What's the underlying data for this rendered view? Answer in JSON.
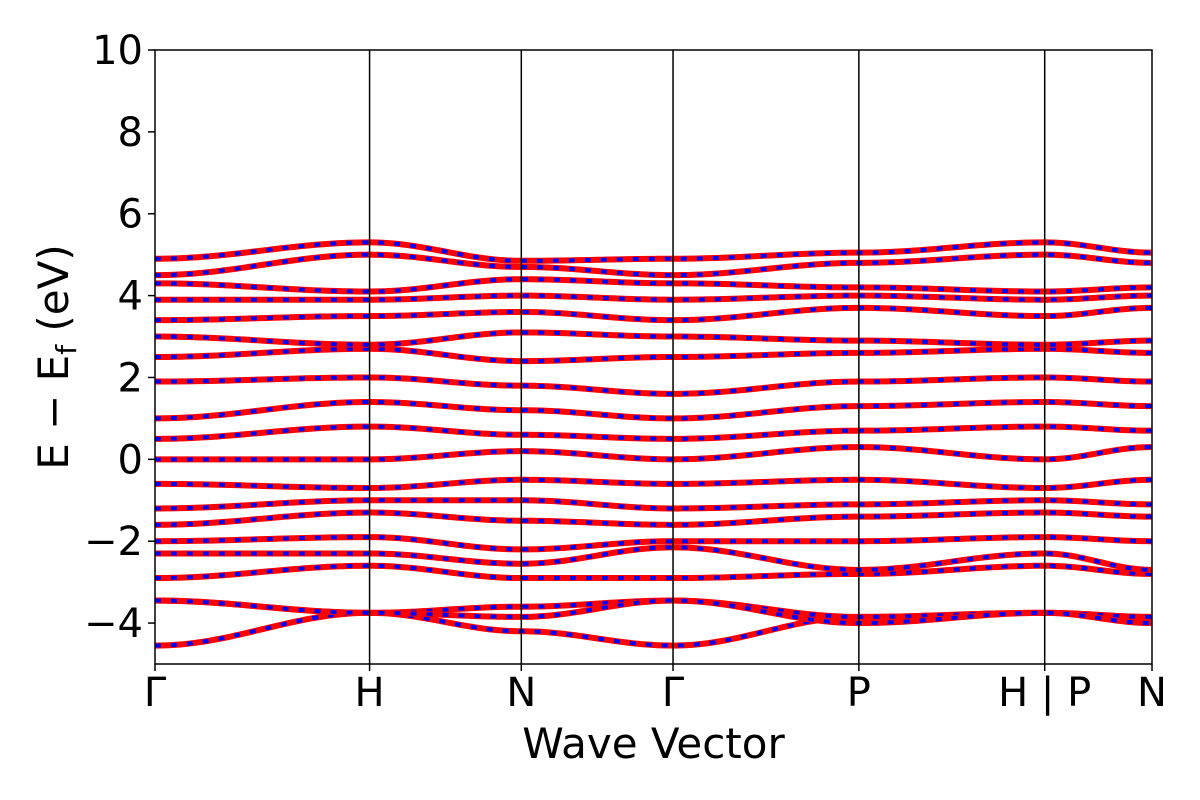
{
  "chart_data": {
    "type": "line",
    "title": "",
    "xlabel": "Wave Vector",
    "ylabel": "E − E",
    "ylabel_subscript": "f",
    "ylabel_unit": " (eV)",
    "ylim": [
      -5,
      10
    ],
    "yticks": [
      -4,
      -2,
      0,
      2,
      4,
      6,
      8,
      10
    ],
    "ytick_labels": [
      "−4",
      "−2",
      "0",
      "2",
      "4",
      "6",
      "8",
      "10"
    ],
    "kpath": [
      {
        "label": "Γ",
        "k": 0.0
      },
      {
        "label": "H",
        "k": 1.0
      },
      {
        "label": "N",
        "k": 1.7071
      },
      {
        "label": "Γ",
        "k": 2.4142
      },
      {
        "label": "P",
        "k": 3.2802
      },
      {
        "label": "H | P",
        "k": 4.1463
      },
      {
        "label": "N",
        "k": 4.6463
      }
    ],
    "series_colors": {
      "spin_up": "#ff0000",
      "spin_down": "#0000ff"
    },
    "grid": false,
    "bands": [
      {
        "y": [
          -4.55,
          -3.75,
          -4.2,
          -4.55,
          -3.85,
          -3.75,
          -3.85,
          -4.2
        ]
      },
      {
        "y": [
          -3.45,
          -3.75,
          -3.6,
          -3.45,
          -3.85,
          -3.75,
          -3.85,
          -3.6
        ]
      },
      {
        "y": [
          -3.45,
          -3.75,
          -3.85,
          -3.45,
          -4.0,
          -3.75,
          -4.0,
          -3.85
        ]
      },
      {
        "y": [
          -2.9,
          -2.6,
          -2.9,
          -2.9,
          -2.8,
          -2.6,
          -2.8,
          -2.9
        ]
      },
      {
        "y": [
          -2.3,
          -2.3,
          -2.55,
          -2.15,
          -2.7,
          -2.3,
          -2.7,
          -2.55
        ]
      },
      {
        "y": [
          -2.0,
          -1.9,
          -2.2,
          -2.0,
          -2.0,
          -1.9,
          -2.0,
          -2.2
        ]
      },
      {
        "y": [
          -1.6,
          -1.3,
          -1.5,
          -1.6,
          -1.4,
          -1.3,
          -1.4,
          -1.5
        ]
      },
      {
        "y": [
          -1.2,
          -1.0,
          -1.0,
          -1.2,
          -1.1,
          -1.0,
          -1.1,
          -1.0
        ]
      },
      {
        "y": [
          -0.6,
          -0.7,
          -0.5,
          -0.6,
          -0.5,
          -0.7,
          -0.5,
          -0.5
        ]
      },
      {
        "y": [
          0.0,
          0.0,
          0.2,
          0.0,
          0.3,
          0.0,
          0.3,
          0.2
        ]
      },
      {
        "y": [
          0.5,
          0.8,
          0.6,
          0.5,
          0.7,
          0.8,
          0.7,
          0.6
        ]
      },
      {
        "y": [
          1.0,
          1.4,
          1.2,
          1.0,
          1.3,
          1.4,
          1.3,
          1.2
        ]
      },
      {
        "y": [
          1.9,
          2.0,
          1.8,
          1.6,
          1.9,
          2.0,
          1.9,
          1.8
        ]
      },
      {
        "y": [
          2.5,
          2.7,
          2.4,
          2.5,
          2.6,
          2.7,
          2.6,
          2.4
        ]
      },
      {
        "y": [
          3.0,
          2.8,
          3.1,
          3.0,
          2.9,
          2.8,
          2.9,
          3.1
        ]
      },
      {
        "y": [
          3.4,
          3.5,
          3.6,
          3.4,
          3.7,
          3.5,
          3.7,
          3.6
        ]
      },
      {
        "y": [
          3.9,
          3.9,
          4.0,
          3.9,
          4.0,
          3.9,
          4.0,
          4.0
        ]
      },
      {
        "y": [
          4.3,
          4.1,
          4.4,
          4.3,
          4.2,
          4.1,
          4.2,
          4.4
        ]
      },
      {
        "y": [
          4.5,
          5.0,
          4.7,
          4.5,
          4.8,
          5.0,
          4.8,
          4.7
        ]
      },
      {
        "y": [
          4.9,
          5.3,
          4.85,
          4.9,
          5.05,
          5.3,
          5.05,
          4.85
        ]
      }
    ]
  }
}
